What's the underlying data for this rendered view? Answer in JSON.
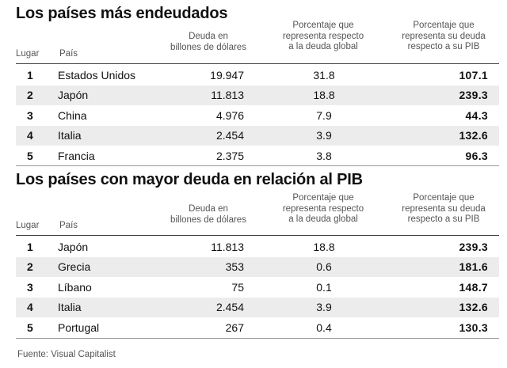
{
  "tables": [
    {
      "title": "Los países más endeudados",
      "headers": {
        "lugar": "Lugar",
        "pais": "País",
        "deuda": "Deuda en\nbillones de dólares",
        "porcentaje_global": "Porcentaje que\nrepresenta respecto\na la deuda global",
        "porcentaje_pib": "Porcentaje que\nrepresenta su deuda\nrespecto a su PIB"
      },
      "rows": [
        {
          "lugar": "1",
          "pais": "Estados Unidos",
          "deuda": "19.947",
          "porcentaje_global": "31.8",
          "porcentaje_pib": "107.1"
        },
        {
          "lugar": "2",
          "pais": "Japón",
          "deuda": "11.813",
          "porcentaje_global": "18.8",
          "porcentaje_pib": "239.3"
        },
        {
          "lugar": "3",
          "pais": "China",
          "deuda": "4.976",
          "porcentaje_global": "7.9",
          "porcentaje_pib": "44.3"
        },
        {
          "lugar": "4",
          "pais": "Italia",
          "deuda": "2.454",
          "porcentaje_global": "3.9",
          "porcentaje_pib": "132.6"
        },
        {
          "lugar": "5",
          "pais": "Francia",
          "deuda": "2.375",
          "porcentaje_global": "3.8",
          "porcentaje_pib": "96.3"
        }
      ]
    },
    {
      "title": "Los países con mayor deuda en relación al PIB",
      "headers": {
        "lugar": "Lugar",
        "pais": "País",
        "deuda": "Deuda en\nbillones de dólares",
        "porcentaje_global": "Porcentaje que\nrepresenta respecto\na la deuda global",
        "porcentaje_pib": "Porcentaje que\nrepresenta su deuda\nrespecto a su PIB"
      },
      "rows": [
        {
          "lugar": "1",
          "pais": "Japón",
          "deuda": "11.813",
          "porcentaje_global": "18.8",
          "porcentaje_pib": "239.3"
        },
        {
          "lugar": "2",
          "pais": "Grecia",
          "deuda": "353",
          "porcentaje_global": "0.6",
          "porcentaje_pib": "181.6"
        },
        {
          "lugar": "3",
          "pais": "Líbano",
          "deuda": "75",
          "porcentaje_global": "0.1",
          "porcentaje_pib": "148.7"
        },
        {
          "lugar": "4",
          "pais": "Italia",
          "deuda": "2.454",
          "porcentaje_global": "3.9",
          "porcentaje_pib": "132.6"
        },
        {
          "lugar": "5",
          "pais": "Portugal",
          "deuda": "267",
          "porcentaje_global": "0.4",
          "porcentaje_pib": "130.3"
        }
      ]
    }
  ],
  "footer": "Fuente: Visual Capitalist",
  "colors": {
    "row_shade": "#ececec",
    "text": "#111111",
    "header_text": "#555555"
  }
}
